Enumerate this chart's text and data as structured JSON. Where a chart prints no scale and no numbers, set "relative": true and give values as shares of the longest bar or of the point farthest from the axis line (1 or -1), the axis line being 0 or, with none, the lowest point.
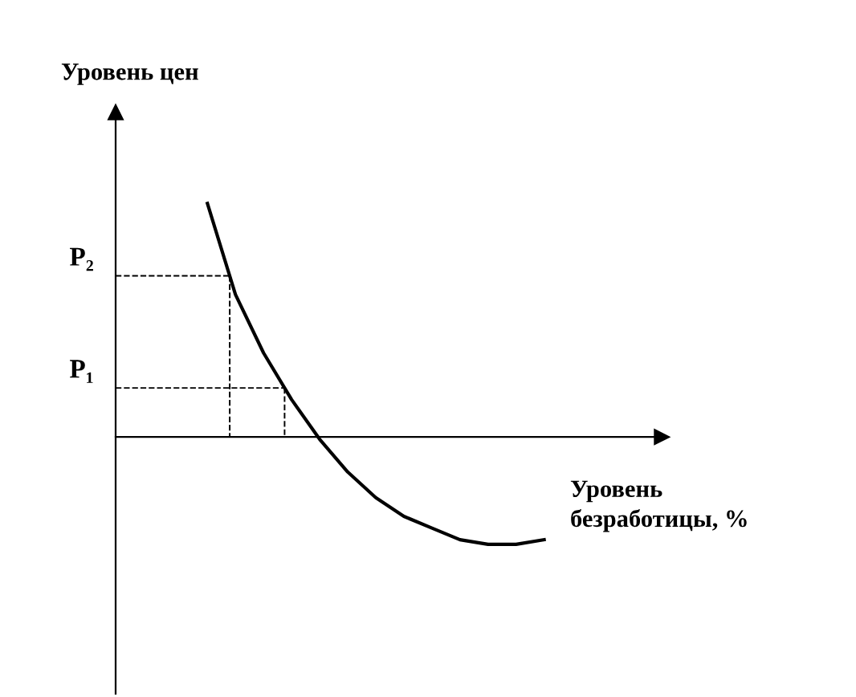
{
  "chart_data": {
    "type": "line",
    "relative": true,
    "ylabel": "Уровень цен",
    "xlabel": "Уровень\nбезработицы, %",
    "categories": [
      null,
      null,
      null,
      null,
      null,
      null,
      null,
      null,
      null,
      null,
      null,
      null,
      null
    ],
    "series": [
      {
        "color": "#000000",
        "values": [
          1.0,
          0.61,
          0.36,
          0.16,
          -0.01,
          -0.15,
          -0.26,
          -0.34,
          -0.39,
          -0.44,
          -0.46,
          -0.46,
          -0.44
        ]
      }
    ],
    "ref_lines": [
      {
        "axis": "y",
        "value": 0.69,
        "label": "P₂",
        "line_style": "dashed"
      },
      {
        "axis": "y",
        "value": 0.21,
        "label": "P₁",
        "line_style": "dashed"
      }
    ],
    "marker": "none",
    "line_style": "solid",
    "legend": false
  }
}
